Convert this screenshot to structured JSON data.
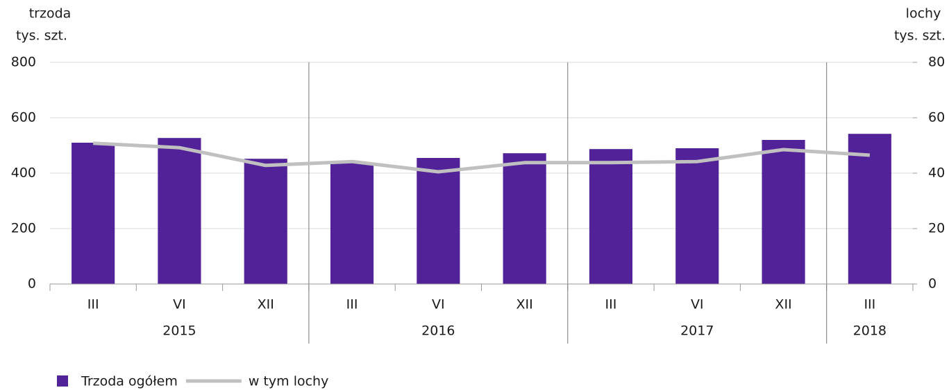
{
  "chart_data": {
    "type": "bar-line",
    "ylabel": [
      "trzoda",
      "tys. szt."
    ],
    "y2label": [
      "lochy",
      "tys. szt."
    ],
    "groups": [
      {
        "name": "2015",
        "categories": [
          "III",
          "VI",
          "XII"
        ]
      },
      {
        "name": "2016",
        "categories": [
          "III",
          "VI",
          "XII"
        ]
      },
      {
        "name": "2017",
        "categories": [
          "III",
          "VI",
          "XII"
        ]
      },
      {
        "name": "2018",
        "categories": [
          "III"
        ]
      }
    ],
    "series": [
      {
        "name": "Trzoda ogółem",
        "type": "bar",
        "color": "#522398",
        "values": [
          510,
          527,
          452,
          437,
          455,
          472,
          487,
          490,
          520,
          542
        ]
      },
      {
        "name": "w tym lochy",
        "type": "line",
        "axis": "y2",
        "color": "#c0c0c0",
        "values": [
          50.8,
          49.2,
          42.8,
          44.2,
          40.5,
          43.8,
          43.8,
          44.2,
          48.5,
          46.5
        ]
      }
    ],
    "ylim": [
      0,
      800
    ],
    "yticks": [
      0,
      200,
      400,
      600,
      800
    ],
    "y2lim": [
      0,
      80
    ],
    "y2ticks": [
      0,
      20,
      40,
      60,
      80
    ],
    "grid": true
  }
}
